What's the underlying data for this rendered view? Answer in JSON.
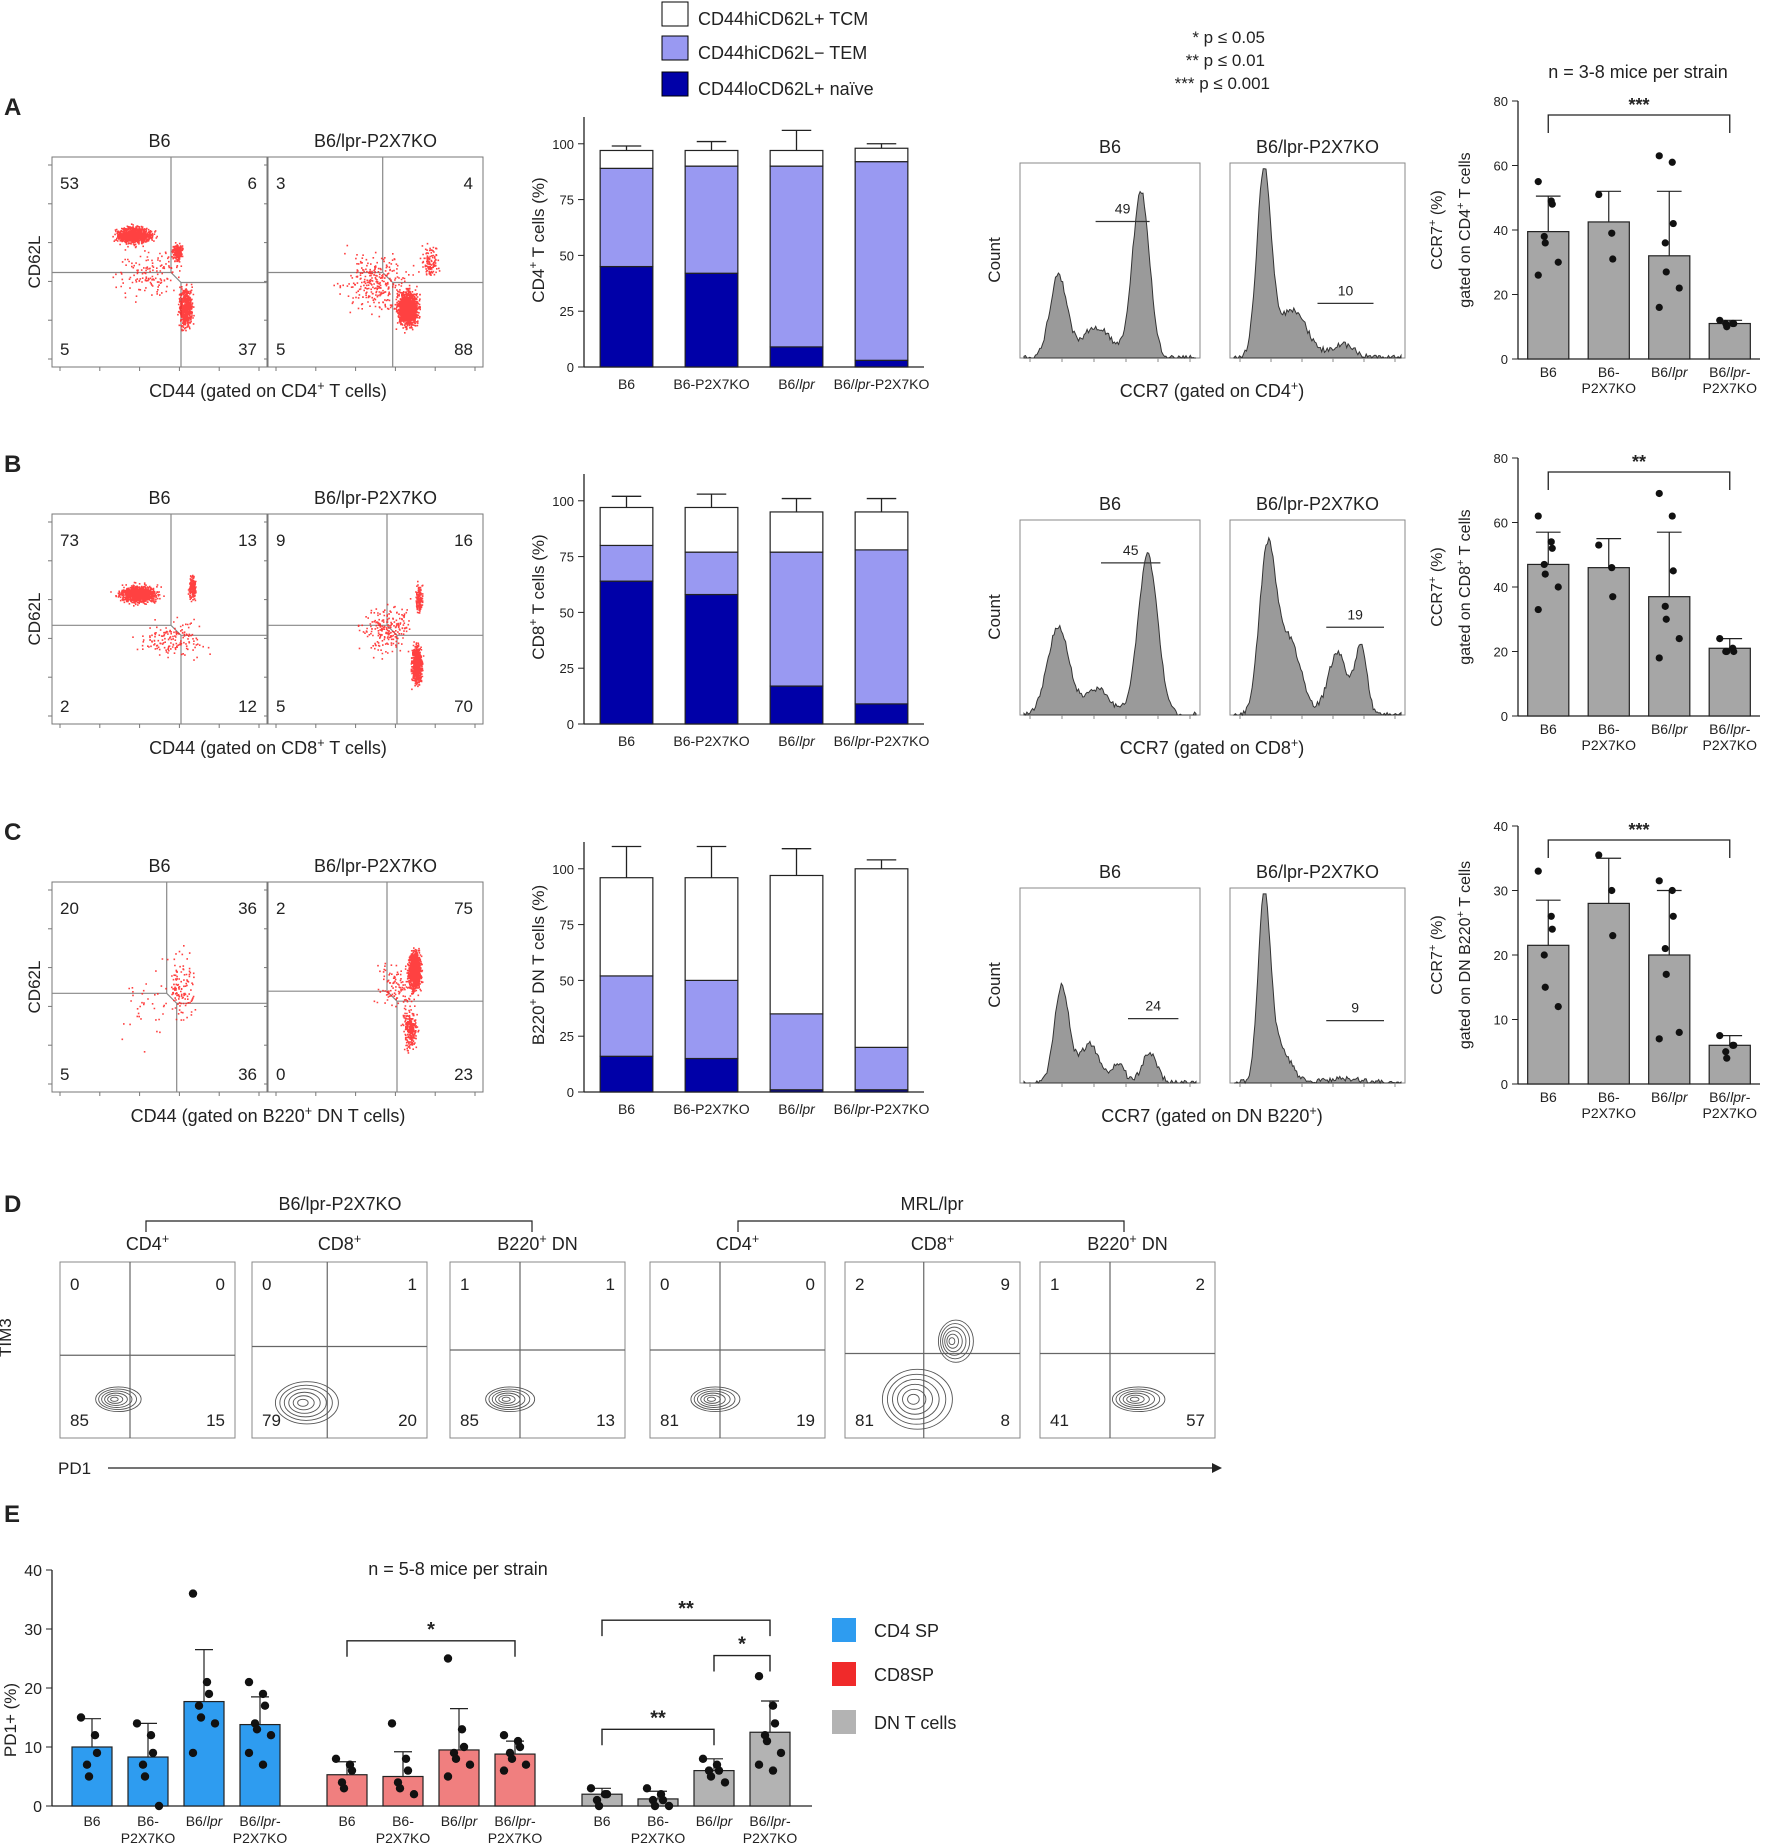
{
  "legend": {
    "tcm": "CD44hiCD62L+ TCM",
    "tem": "CD44hiCD62L− TEM",
    "naive": "CD44loCD62L+ naïve"
  },
  "pvals": [
    "* p ≤ 0.05",
    "** p ≤ 0.01",
    "*** p ≤ 0.001"
  ],
  "n_label": "n = 3-8 mice per strain",
  "n_label_e": "n = 5-8 mice per strain",
  "colors": {
    "tcm": "#ffffff",
    "tem": "#9999f2",
    "naive": "#0000a8",
    "grey_bar": "#a6a6a6",
    "dots": "#ff2020",
    "cd4": "#2e9cf0",
    "cd8": "#f07f7f",
    "dn": "#b3b3b3"
  },
  "panels": [
    {
      "letter": "A",
      "dot_titles": [
        "B6",
        "B6/lpr-P2X7KO"
      ],
      "dot_quad": [
        [
          "53",
          "6",
          "5",
          "37"
        ],
        [
          "3",
          "4",
          "5",
          "88"
        ]
      ],
      "dot_ylabel": "CD62L",
      "dot_xlabel": "CD44 (gated on CD4+ T cells)",
      "stack_ylabel": "CD4+ T cells (%)",
      "hist_titles": [
        "B6",
        "B6/lpr-P2X7KO"
      ],
      "hist_pct": [
        "49",
        "10"
      ],
      "hist_ylabel": "Count",
      "hist_xlabel": "CCR7 (gated on CD4+)",
      "ccr7_ylabel": [
        "CCR7+ (%)",
        "gated on CD4+ T cells"
      ],
      "sig": "***"
    },
    {
      "letter": "B",
      "dot_titles": [
        "B6",
        "B6/lpr-P2X7KO"
      ],
      "dot_quad": [
        [
          "73",
          "13",
          "2",
          "12"
        ],
        [
          "9",
          "16",
          "5",
          "70"
        ]
      ],
      "dot_ylabel": "CD62L",
      "dot_xlabel": "CD44 (gated on CD8+ T cells)",
      "stack_ylabel": "CD8+ T cells (%)",
      "hist_titles": [
        "B6",
        "B6/lpr-P2X7KO"
      ],
      "hist_pct": [
        "45",
        "19"
      ],
      "hist_ylabel": "Count",
      "hist_xlabel": "CCR7 (gated on CD8+)",
      "ccr7_ylabel": [
        "CCR7+ (%)",
        "gated on CD8+ T cells"
      ],
      "sig": "**"
    },
    {
      "letter": "C",
      "dot_titles": [
        "B6",
        "B6/lpr-P2X7KO"
      ],
      "dot_quad": [
        [
          "20",
          "36",
          "5",
          "36"
        ],
        [
          "2",
          "75",
          "0",
          "23"
        ]
      ],
      "dot_ylabel": "CD62L",
      "dot_xlabel": "CD44 (gated on B220+ DN T cells)",
      "stack_ylabel": "B220+ DN T cells (%)",
      "hist_titles": [
        "B6",
        "B6/lpr-P2X7KO"
      ],
      "hist_pct": [
        "24",
        "9"
      ],
      "hist_ylabel": "Count",
      "hist_xlabel": "CCR7 (gated on DN B220+)",
      "ccr7_ylabel": [
        "CCR7+ (%)",
        "gated on DN B220+ T cells"
      ],
      "sig": "***"
    }
  ],
  "panel_d": {
    "letter": "D",
    "group1": "B6/lpr-P2X7KO",
    "group2": "MRL/lpr",
    "subsets": [
      "CD4+",
      "CD8+",
      "B220+ DN",
      "CD4+",
      "CD8+",
      "B220+ DN"
    ],
    "quads": [
      [
        "0",
        "0",
        "85",
        "15"
      ],
      [
        "0",
        "1",
        "79",
        "20"
      ],
      [
        "1",
        "1",
        "85",
        "13"
      ],
      [
        "0",
        "0",
        "81",
        "19"
      ],
      [
        "2",
        "9",
        "81",
        "8"
      ],
      [
        "1",
        "2",
        "41",
        "57"
      ]
    ],
    "ylabel": "TIM3",
    "xlabel": "PD1"
  },
  "panel_e": {
    "letter": "E",
    "ylabel": "PD1+ (%)",
    "legend": [
      "CD4 SP",
      "CD8SP",
      "DN T cells"
    ]
  },
  "chart_data": [
    {
      "type": "bar",
      "title": "A stacked",
      "stacked": true,
      "categories": [
        "B6",
        "B6-P2X7KO",
        "B6/lpr",
        "B6/lpr-P2X7KO"
      ],
      "series": [
        {
          "name": "CD44loCD62L+ naïve",
          "values": [
            45,
            42,
            9,
            3
          ],
          "err": [
            53,
            54,
            23,
            5
          ]
        },
        {
          "name": "CD44hiCD62L− TEM",
          "values": [
            44,
            48,
            81,
            89
          ],
          "err": [
            0,
            0,
            0,
            0
          ]
        },
        {
          "name": "CD44hiCD62L+ TCM",
          "values": [
            8,
            7,
            7,
            6
          ],
          "err": [
            99,
            101,
            106,
            100
          ]
        }
      ],
      "ylabel": "CD4+ T cells (%)",
      "ylim": [
        0,
        100
      ],
      "yticks": [
        0,
        25,
        50,
        75,
        100
      ]
    },
    {
      "type": "bar",
      "title": "B stacked",
      "stacked": true,
      "categories": [
        "B6",
        "B6-P2X7KO",
        "B6/lpr",
        "B6/lpr-P2X7KO"
      ],
      "series": [
        {
          "name": "CD44loCD62L+ naïve",
          "values": [
            64,
            58,
            17,
            9
          ],
          "err": [
            73,
            66,
            36,
            16
          ]
        },
        {
          "name": "CD44hiCD62L− TEM",
          "values": [
            16,
            19,
            60,
            69
          ],
          "err": [
            85,
            81,
            0,
            0
          ]
        },
        {
          "name": "CD44hiCD62L+ TCM",
          "values": [
            17,
            20,
            18,
            17
          ],
          "err": [
            102,
            103,
            101,
            101
          ]
        }
      ],
      "ylabel": "CD8+ T cells (%)",
      "ylim": [
        0,
        100
      ],
      "yticks": [
        0,
        25,
        50,
        75,
        100
      ]
    },
    {
      "type": "bar",
      "title": "C stacked",
      "stacked": true,
      "categories": [
        "B6",
        "B6-P2X7KO",
        "B6/lpr",
        "B6/lpr-P2X7KO"
      ],
      "series": [
        {
          "name": "CD44loCD62L+ naïve",
          "values": [
            16,
            15,
            1,
            1
          ],
          "err": [
            18,
            19,
            2,
            1
          ]
        },
        {
          "name": "CD44hiCD62L− TEM",
          "values": [
            36,
            35,
            34,
            19
          ],
          "err": [
            63,
            64,
            62,
            24
          ]
        },
        {
          "name": "CD44hiCD62L+ TCM",
          "values": [
            44,
            46,
            62,
            80
          ],
          "err": [
            110,
            110,
            109,
            104
          ]
        }
      ],
      "ylabel": "B220+ DN T cells (%)",
      "ylim": [
        0,
        100
      ],
      "yticks": [
        0,
        25,
        50,
        75,
        100
      ]
    },
    {
      "type": "bar",
      "title": "A CCR7",
      "categories": [
        "B6",
        "B6-P2X7KO",
        "B6/lpr",
        "B6/lpr-P2X7KO"
      ],
      "values": [
        39.5,
        42.5,
        32,
        11
      ],
      "err": [
        50.5,
        52,
        52,
        12
      ],
      "points": [
        [
          55,
          49,
          48,
          38,
          36,
          30,
          26
        ],
        [
          51,
          39,
          31
        ],
        [
          63,
          61,
          42,
          36,
          27,
          22,
          16
        ],
        [
          12,
          11,
          11,
          11,
          10
        ]
      ],
      "ylim": [
        0,
        80
      ],
      "yticks": [
        0,
        20,
        40,
        60,
        80
      ]
    },
    {
      "type": "bar",
      "title": "B CCR7",
      "categories": [
        "B6",
        "B6-P2X7KO",
        "B6/lpr",
        "B6/lpr-P2X7KO"
      ],
      "values": [
        47,
        46,
        37,
        21
      ],
      "err": [
        57,
        55,
        57,
        24
      ],
      "points": [
        [
          62,
          54,
          52,
          47,
          44,
          40,
          33
        ],
        [
          53,
          46,
          37
        ],
        [
          69,
          62,
          45,
          34,
          30,
          24,
          18
        ],
        [
          24,
          21,
          20,
          20,
          20
        ]
      ],
      "ylim": [
        0,
        80
      ],
      "yticks": [
        0,
        20,
        40,
        60,
        80
      ]
    },
    {
      "type": "bar",
      "title": "C CCR7",
      "categories": [
        "B6",
        "B6-P2X7KO",
        "B6/lpr",
        "B6/lpr-P2X7KO"
      ],
      "values": [
        21.5,
        28,
        20,
        6
      ],
      "err": [
        28.5,
        35,
        30,
        7.5
      ],
      "points": [
        [
          33,
          26,
          24,
          20,
          15,
          12
        ],
        [
          35.5,
          30,
          23
        ],
        [
          31.5,
          30,
          26,
          21,
          17,
          8,
          7
        ],
        [
          7.5,
          6,
          6,
          5,
          4
        ]
      ],
      "ylim": [
        0,
        40
      ],
      "yticks": [
        0,
        10,
        20,
        30,
        40
      ]
    },
    {
      "type": "bar",
      "title": "E PD1",
      "categories": [
        "B6",
        "B6-P2X7KO",
        "B6/lpr",
        "B6/lpr-P2X7KO"
      ],
      "series": [
        {
          "name": "CD4 SP",
          "values": [
            10,
            8.3,
            17.7,
            13.8
          ],
          "err": [
            14.8,
            14,
            26.5,
            18.5
          ],
          "points": [
            [
              15,
              12,
              9,
              7,
              5
            ],
            [
              14,
              12,
              9,
              7,
              5,
              0
            ],
            [
              36,
              21,
              19,
              17,
              15,
              14,
              9
            ],
            [
              21,
              19,
              17,
              14,
              13,
              12,
              9,
              7
            ]
          ]
        },
        {
          "name": "CD8SP",
          "values": [
            5.3,
            5,
            9.5,
            8.8
          ],
          "err": [
            7.5,
            9.2,
            16.5,
            11
          ],
          "points": [
            [
              8,
              7,
              6,
              4,
              3
            ],
            [
              14,
              8,
              6,
              4,
              3,
              2
            ],
            [
              25,
              13,
              10,
              9,
              8,
              7,
              5
            ],
            [
              12,
              11,
              10,
              9,
              8,
              7,
              6
            ]
          ]
        },
        {
          "name": "DN T cells",
          "values": [
            2,
            1.2,
            6,
            12.5
          ],
          "err": [
            3,
            2.5,
            8,
            17.8
          ],
          "points": [
            [
              3,
              2,
              2,
              1,
              0
            ],
            [
              3,
              2,
              1,
              1,
              0,
              0
            ],
            [
              8,
              7,
              6,
              6,
              5,
              4
            ],
            [
              22,
              17,
              14,
              12,
              11,
              9,
              7,
              6
            ]
          ]
        }
      ],
      "ylabel": "PD1+ (%)",
      "ylim": [
        0,
        40
      ],
      "yticks": [
        0,
        10,
        20,
        30,
        40
      ],
      "sig": [
        {
          "label": "*"
        },
        {
          "label": "**"
        },
        {
          "label": "**"
        },
        {
          "label": "*"
        }
      ]
    }
  ]
}
